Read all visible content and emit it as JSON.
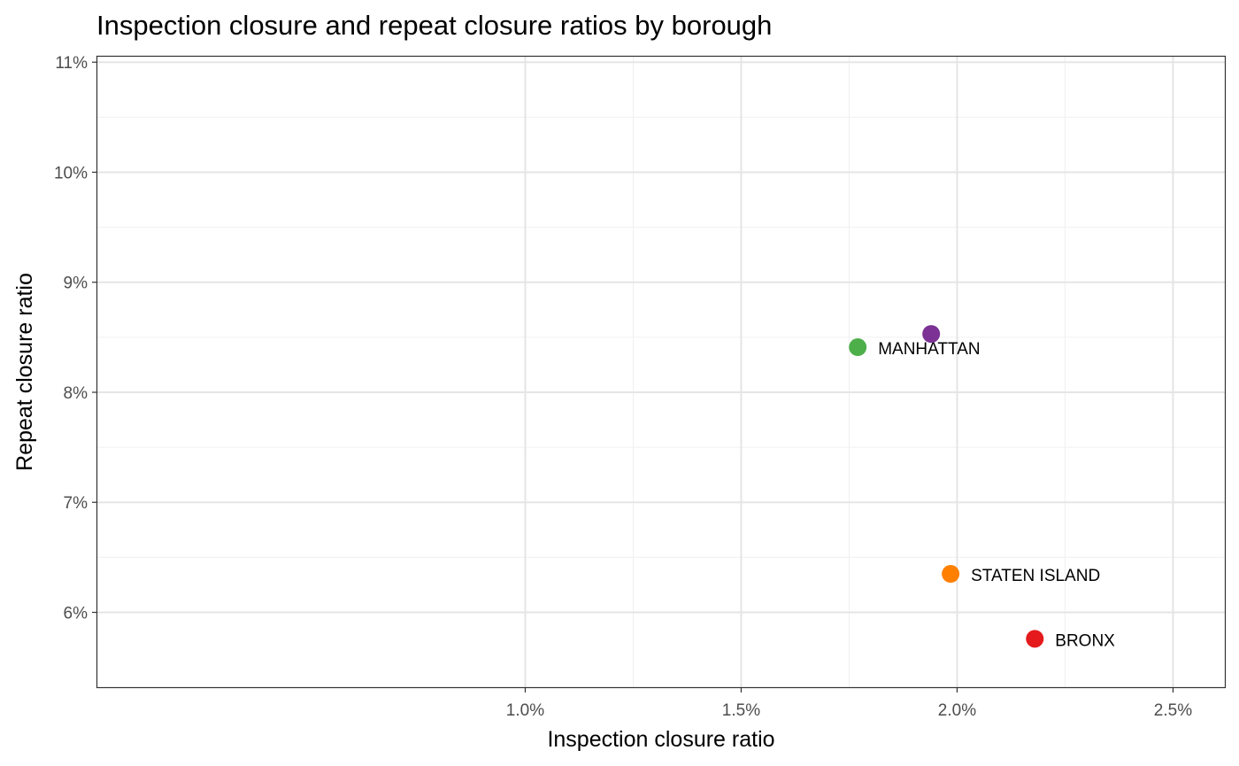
{
  "chart_data": {
    "type": "scatter",
    "title": "Inspection closure and repeat closure ratios by borough",
    "xlabel": "Inspection closure ratio",
    "ylabel": "Repeat closure ratio",
    "xlim": [
      0.00925,
      2.62
    ],
    "ylim": [
      5.32,
      11.05
    ],
    "x_ticks": [
      1.0,
      1.5,
      2.0,
      2.5
    ],
    "x_tick_labels": [
      "1.0%",
      "1.5%",
      "2.0%",
      "2.5%"
    ],
    "y_ticks": [
      6,
      7,
      8,
      9,
      10,
      11
    ],
    "y_tick_labels": [
      "6%",
      "7%",
      "8%",
      "9%",
      "10%",
      "11%"
    ],
    "grid": true,
    "points": [
      {
        "x": 1.77,
        "y": 8.41,
        "label": "MANHATTAN",
        "color": "#4daf4a"
      },
      {
        "x": 1.94,
        "y": 8.53,
        "label": "",
        "color": "#7b3294"
      },
      {
        "x": 1.985,
        "y": 6.35,
        "label": "STATEN ISLAND",
        "color": "#ff7f00"
      },
      {
        "x": 2.18,
        "y": 5.76,
        "label": "BRONX",
        "color": "#e41a1c"
      }
    ]
  }
}
